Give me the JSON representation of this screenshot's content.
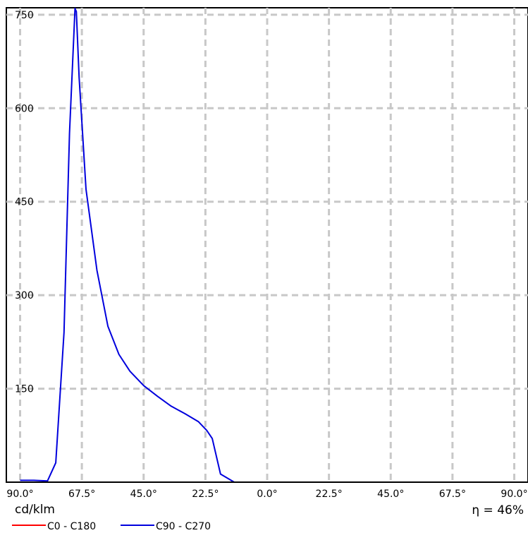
{
  "chart_data": {
    "type": "line",
    "xlabel": "",
    "ylabel": "cd/klm",
    "x_tick_labels": [
      "90.0°",
      "67.5°",
      "45.0°",
      "22.5°",
      "0.0°",
      "22.5°",
      "45.0°",
      "67.5°",
      "90.0°"
    ],
    "y_ticks": [
      150,
      300,
      450,
      600,
      750
    ],
    "ylim": [
      0,
      760
    ],
    "xlim": [
      -90,
      90
    ],
    "grid": true,
    "legend_position": "bottom-left",
    "efficiency_label": "η = 46%",
    "series": [
      {
        "name": "C0 - C180",
        "color": "#ff0000",
        "x": [
          -90,
          -80,
          -70,
          -60,
          -50,
          -40,
          -30,
          -20,
          -10,
          0,
          10,
          20,
          30,
          40,
          50,
          60,
          70,
          80,
          90
        ],
        "y": [
          0,
          0,
          0,
          0,
          0,
          0,
          0,
          0,
          0,
          0,
          0,
          0,
          0,
          0,
          0,
          0,
          0,
          0,
          0
        ]
      },
      {
        "name": "C90 - C270",
        "color": "#0000dd",
        "x": [
          -90,
          -85,
          -80,
          -77,
          -74,
          -72,
          -70,
          -69.5,
          -68.5,
          -66,
          -62,
          -58,
          -54,
          -50,
          -45,
          -40,
          -35,
          -30,
          -25,
          -22,
          -20,
          -17,
          -12,
          -5
        ],
        "y": [
          3,
          3,
          2,
          31,
          240,
          560,
          760,
          755,
          650,
          470,
          340,
          250,
          205,
          178,
          155,
          138,
          122,
          110,
          97,
          83,
          70,
          13,
          0,
          0
        ]
      }
    ]
  }
}
